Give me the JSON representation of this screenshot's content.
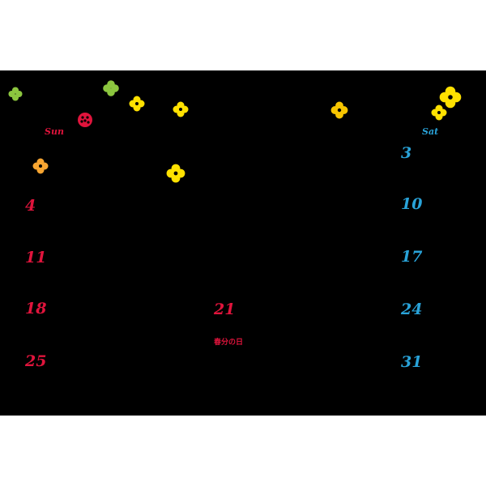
{
  "colors": {
    "background": "#000000",
    "sunday": "#e0143c",
    "saturday": "#29a3d9",
    "holiday": "#e0143c",
    "flower_yellow": "#ffe100",
    "flower_orange": "#f7a531",
    "clover_green": "#8cc63f",
    "ladybug_red": "#e0143c"
  },
  "calendar": {
    "weekday_headers": {
      "sun": "Sun",
      "sat": "Sat"
    },
    "sundays": [
      "4",
      "11",
      "18",
      "25"
    ],
    "saturdays": [
      "3",
      "10",
      "17",
      "24",
      "31"
    ],
    "holiday": {
      "day": "21",
      "name": "春分の日"
    }
  },
  "decorations": [
    "clover-icon",
    "clover-icon",
    "ladybug-icon",
    "flower-icon",
    "flower-icon",
    "flower-icon",
    "flower-icon",
    "flower-icon",
    "flower-icon",
    "flower-icon"
  ]
}
